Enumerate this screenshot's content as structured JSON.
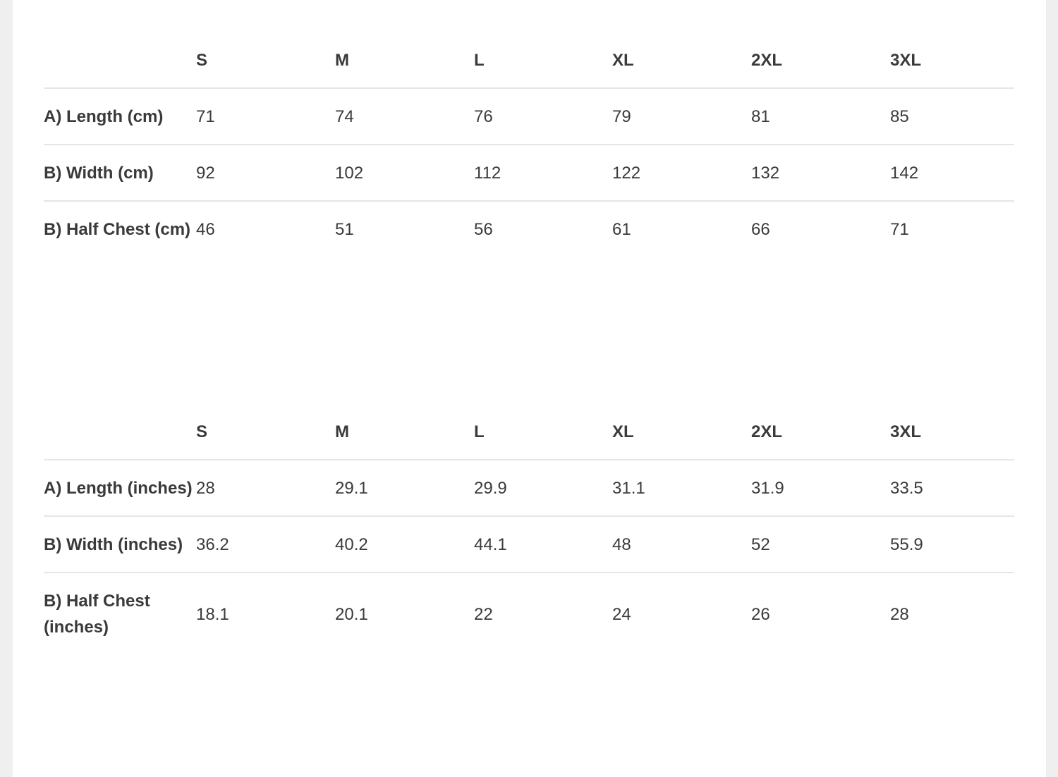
{
  "tables": [
    {
      "headers": [
        "",
        "S",
        "M",
        "L",
        "XL",
        "2XL",
        "3XL"
      ],
      "rows": [
        {
          "label": "A) Length (cm)",
          "values": [
            "71",
            "74",
            "76",
            "79",
            "81",
            "85"
          ]
        },
        {
          "label": "B) Width (cm)",
          "values": [
            "92",
            "102",
            "112",
            "122",
            "132",
            "142"
          ]
        },
        {
          "label": "B) Half Chest (cm)",
          "values": [
            "46",
            "51",
            "56",
            "61",
            "66",
            "71"
          ]
        }
      ]
    },
    {
      "headers": [
        "",
        "S",
        "M",
        "L",
        "XL",
        "2XL",
        "3XL"
      ],
      "rows": [
        {
          "label": "A) Length (inches)",
          "values": [
            "28",
            "29.1",
            "29.9",
            "31.1",
            "31.9",
            "33.5"
          ]
        },
        {
          "label": "B) Width (inches)",
          "values": [
            "36.2",
            "40.2",
            "44.1",
            "48",
            "52",
            "55.9"
          ]
        },
        {
          "label": "B) Half Chest (inches)",
          "values": [
            "18.1",
            "20.1",
            "22",
            "24",
            "26",
            "28"
          ]
        }
      ]
    }
  ]
}
